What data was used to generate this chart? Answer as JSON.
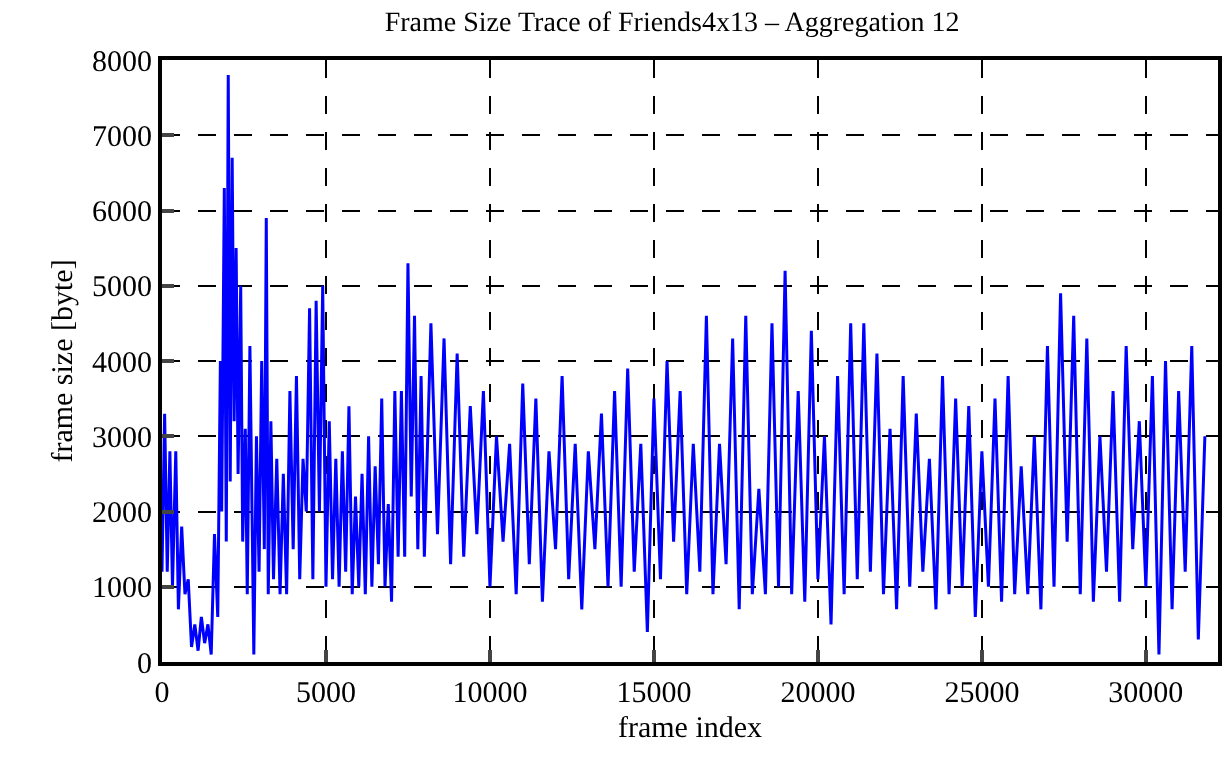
{
  "chart_data": {
    "type": "line",
    "title": "Frame Size Trace of Friends4x13 – Aggregation 12",
    "xlabel": "frame index",
    "ylabel": "frame size [byte]",
    "xlim": [
      0,
      32200
    ],
    "ylim": [
      0,
      8000
    ],
    "xticks": [
      0,
      5000,
      10000,
      15000,
      20000,
      25000,
      30000
    ],
    "yticks": [
      0,
      1000,
      2000,
      3000,
      4000,
      5000,
      6000,
      7000,
      8000
    ],
    "grid": true,
    "line_style": "solid",
    "marker": "none",
    "series": [
      {
        "color": "#0000ff",
        "x": [
          0,
          80,
          160,
          240,
          320,
          420,
          500,
          600,
          700,
          800,
          900,
          1000,
          1100,
          1200,
          1300,
          1400,
          1500,
          1600,
          1700,
          1780,
          1820,
          1900,
          1960,
          2020,
          2080,
          2140,
          2200,
          2260,
          2320,
          2400,
          2460,
          2540,
          2600,
          2680,
          2760,
          2800,
          2880,
          2960,
          3040,
          3120,
          3180,
          3240,
          3320,
          3400,
          3500,
          3600,
          3700,
          3800,
          3900,
          4000,
          4100,
          4200,
          4300,
          4400,
          4500,
          4600,
          4700,
          4800,
          4900,
          5000,
          5100,
          5200,
          5300,
          5400,
          5500,
          5600,
          5700,
          5800,
          5900,
          6000,
          6100,
          6200,
          6300,
          6400,
          6500,
          6600,
          6700,
          6800,
          6900,
          7000,
          7100,
          7200,
          7300,
          7400,
          7500,
          7600,
          7700,
          7800,
          7900,
          8000,
          8200,
          8400,
          8600,
          8800,
          9000,
          9200,
          9400,
          9600,
          9800,
          10000,
          10200,
          10400,
          10600,
          10800,
          11000,
          11200,
          11400,
          11600,
          11800,
          12000,
          12200,
          12400,
          12600,
          12800,
          13000,
          13200,
          13400,
          13600,
          13800,
          14000,
          14200,
          14400,
          14600,
          14800,
          15000,
          15200,
          15400,
          15600,
          15800,
          16000,
          16200,
          16400,
          16600,
          16800,
          17000,
          17200,
          17400,
          17600,
          17800,
          18000,
          18200,
          18400,
          18600,
          18800,
          19000,
          19200,
          19400,
          19600,
          19800,
          20000,
          20200,
          20400,
          20600,
          20800,
          21000,
          21200,
          21400,
          21600,
          21800,
          22000,
          22200,
          22400,
          22600,
          22800,
          23000,
          23200,
          23400,
          23600,
          23800,
          24000,
          24200,
          24400,
          24600,
          24800,
          25000,
          25200,
          25400,
          25600,
          25800,
          26000,
          26200,
          26400,
          26600,
          26800,
          27000,
          27200,
          27400,
          27600,
          27800,
          28000,
          28200,
          28400,
          28600,
          28800,
          29000,
          29200,
          29400,
          29600,
          29800,
          30000,
          30200,
          30400,
          30600,
          30800,
          31000,
          31200,
          31400,
          31600,
          31800
        ],
        "values": [
          1200,
          3300,
          1200,
          2800,
          1000,
          2800,
          700,
          1800,
          900,
          1100,
          200,
          500,
          150,
          600,
          250,
          500,
          100,
          1700,
          600,
          4000,
          2000,
          6300,
          1600,
          7800,
          2400,
          6700,
          3200,
          5500,
          2500,
          5000,
          1600,
          3100,
          900,
          4200,
          1500,
          100,
          3000,
          1200,
          4000,
          1500,
          5900,
          900,
          3200,
          1100,
          2700,
          900,
          2500,
          900,
          3600,
          1500,
          3800,
          1100,
          2700,
          2000,
          4700,
          1100,
          4800,
          2000,
          5000,
          1000,
          3200,
          1100,
          2700,
          1000,
          2800,
          1200,
          3400,
          900,
          2200,
          1000,
          2500,
          900,
          3000,
          1000,
          2600,
          1300,
          3500,
          1000,
          2100,
          800,
          3600,
          1400,
          3600,
          1400,
          5300,
          2200,
          4600,
          1500,
          3800,
          1400,
          4500,
          1700,
          4300,
          1300,
          4100,
          1400,
          3400,
          1700,
          3600,
          1000,
          3000,
          1600,
          2900,
          900,
          3700,
          1300,
          3500,
          800,
          2800,
          1500,
          3800,
          1100,
          2900,
          700,
          2800,
          1500,
          3300,
          1000,
          3600,
          1000,
          3900,
          1200,
          2900,
          400,
          3500,
          1100,
          4000,
          1600,
          3600,
          900,
          2900,
          1200,
          4600,
          900,
          2900,
          1300,
          4300,
          700,
          4600,
          900,
          2300,
          900,
          4500,
          1000,
          5200,
          900,
          3600,
          800,
          4400,
          1100,
          3000,
          500,
          3800,
          900,
          4500,
          1100,
          4500,
          1200,
          4100,
          900,
          3100,
          700,
          3800,
          1000,
          3300,
          1200,
          2700,
          700,
          3800,
          900,
          3500,
          1000,
          3400,
          600,
          2800,
          1000,
          3500,
          800,
          3800,
          900,
          2600,
          900,
          3000,
          700,
          4200,
          1000,
          4900,
          1600,
          4600,
          900,
          4300,
          800,
          3000,
          1200,
          3600,
          800,
          4200,
          1500,
          3200,
          1000,
          3800,
          100,
          4000,
          700,
          3600,
          1200,
          4200,
          300,
          3000
        ]
      }
    ]
  }
}
